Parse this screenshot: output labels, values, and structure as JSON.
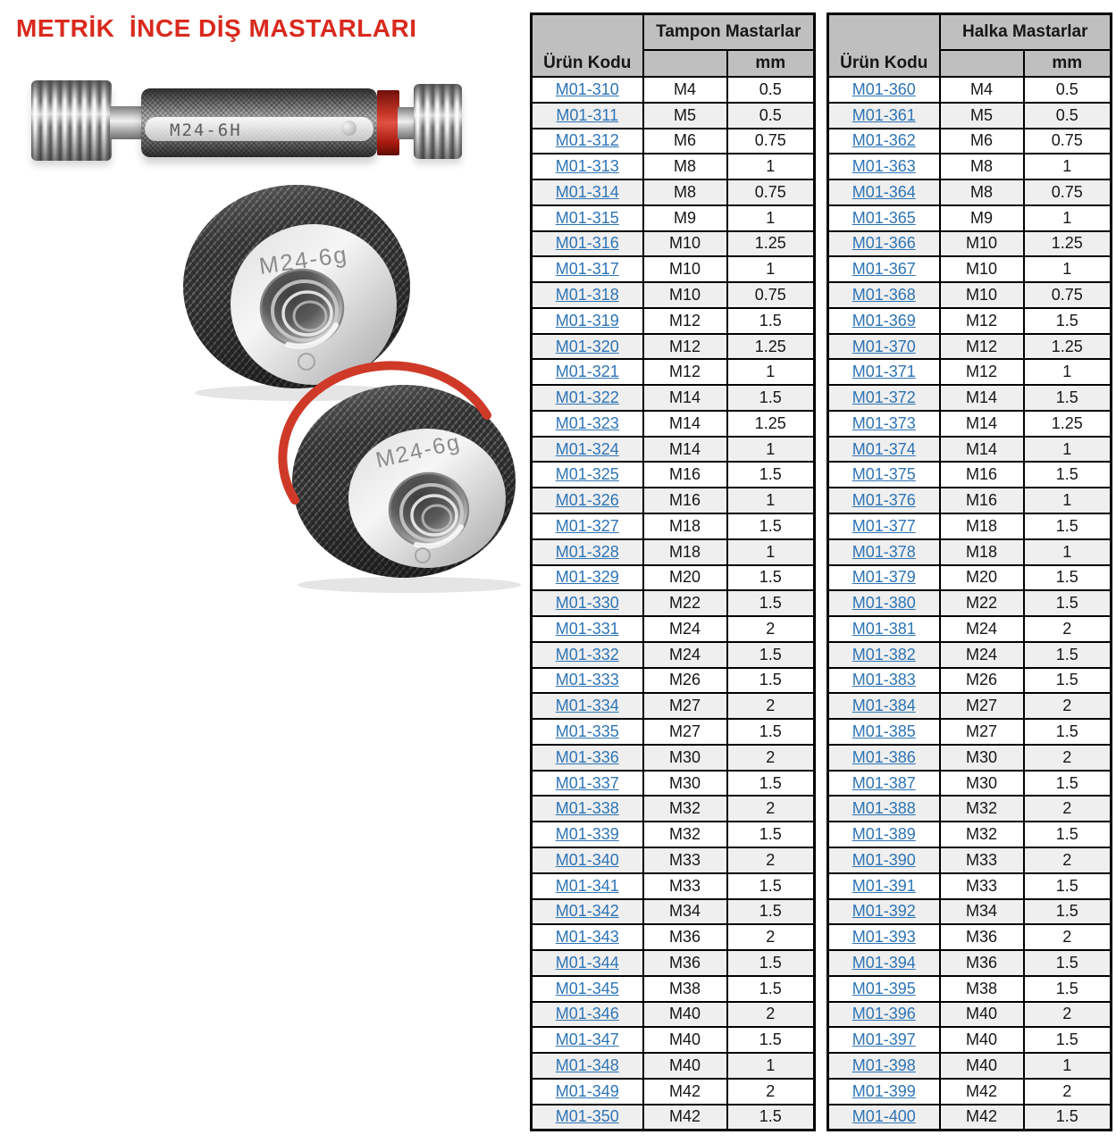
{
  "page": {
    "title": "METRİK  İNCE DİŞ MASTARLARI"
  },
  "product_images": {
    "plug_gauge_label": "M24-6H",
    "go_ring_gauge_label": "M24-6g",
    "nogo_ring_gauge_label": "M24-6g"
  },
  "colors": {
    "title_red": "#D9291D",
    "link_blue": "#2E74B5",
    "header_gray": "#BFBFBF",
    "row_alt_gray": "#EFEFEF",
    "table_border": "#000000",
    "gauge_red_mark": "#C43527"
  },
  "tables": [
    {
      "group_header": "Tampon Mastarlar",
      "col1_header": "Ürün Kodu",
      "unit_header": "mm",
      "rows": [
        {
          "code": "M01-310",
          "size": "M4",
          "mm": "0.5"
        },
        {
          "code": "M01-311",
          "size": "M5",
          "mm": "0.5"
        },
        {
          "code": "M01-312",
          "size": "M6",
          "mm": "0.75"
        },
        {
          "code": "M01-313",
          "size": "M8",
          "mm": "1"
        },
        {
          "code": "M01-314",
          "size": "M8",
          "mm": "0.75"
        },
        {
          "code": "M01-315",
          "size": "M9",
          "mm": "1"
        },
        {
          "code": "M01-316",
          "size": "M10",
          "mm": "1.25"
        },
        {
          "code": "M01-317",
          "size": "M10",
          "mm": "1"
        },
        {
          "code": "M01-318",
          "size": "M10",
          "mm": "0.75"
        },
        {
          "code": "M01-319",
          "size": "M12",
          "mm": "1.5"
        },
        {
          "code": "M01-320",
          "size": "M12",
          "mm": "1.25"
        },
        {
          "code": "M01-321",
          "size": "M12",
          "mm": "1"
        },
        {
          "code": "M01-322",
          "size": "M14",
          "mm": "1.5"
        },
        {
          "code": "M01-323",
          "size": "M14",
          "mm": "1.25"
        },
        {
          "code": "M01-324",
          "size": "M14",
          "mm": "1"
        },
        {
          "code": "M01-325",
          "size": "M16",
          "mm": "1.5"
        },
        {
          "code": "M01-326",
          "size": "M16",
          "mm": "1"
        },
        {
          "code": "M01-327",
          "size": "M18",
          "mm": "1.5"
        },
        {
          "code": "M01-328",
          "size": "M18",
          "mm": "1"
        },
        {
          "code": "M01-329",
          "size": "M20",
          "mm": "1.5"
        },
        {
          "code": "M01-330",
          "size": "M22",
          "mm": "1.5"
        },
        {
          "code": "M01-331",
          "size": "M24",
          "mm": "2"
        },
        {
          "code": "M01-332",
          "size": "M24",
          "mm": "1.5"
        },
        {
          "code": "M01-333",
          "size": "M26",
          "mm": "1.5"
        },
        {
          "code": "M01-334",
          "size": "M27",
          "mm": "2"
        },
        {
          "code": "M01-335",
          "size": "M27",
          "mm": "1.5"
        },
        {
          "code": "M01-336",
          "size": "M30",
          "mm": "2"
        },
        {
          "code": "M01-337",
          "size": "M30",
          "mm": "1.5"
        },
        {
          "code": "M01-338",
          "size": "M32",
          "mm": "2"
        },
        {
          "code": "M01-339",
          "size": "M32",
          "mm": "1.5"
        },
        {
          "code": "M01-340",
          "size": "M33",
          "mm": "2"
        },
        {
          "code": "M01-341",
          "size": "M33",
          "mm": "1.5"
        },
        {
          "code": "M01-342",
          "size": "M34",
          "mm": "1.5"
        },
        {
          "code": "M01-343",
          "size": "M36",
          "mm": "2"
        },
        {
          "code": "M01-344",
          "size": "M36",
          "mm": "1.5"
        },
        {
          "code": "M01-345",
          "size": "M38",
          "mm": "1.5"
        },
        {
          "code": "M01-346",
          "size": "M40",
          "mm": "2"
        },
        {
          "code": "M01-347",
          "size": "M40",
          "mm": "1.5"
        },
        {
          "code": "M01-348",
          "size": "M40",
          "mm": "1"
        },
        {
          "code": "M01-349",
          "size": "M42",
          "mm": "2"
        },
        {
          "code": "M01-350",
          "size": "M42",
          "mm": "1.5"
        }
      ]
    },
    {
      "group_header": "Halka Mastarlar",
      "col1_header": "Ürün Kodu",
      "unit_header": "mm",
      "rows": [
        {
          "code": "M01-360",
          "size": "M4",
          "mm": "0.5"
        },
        {
          "code": "M01-361",
          "size": "M5",
          "mm": "0.5"
        },
        {
          "code": "M01-362",
          "size": "M6",
          "mm": "0.75"
        },
        {
          "code": "M01-363",
          "size": "M8",
          "mm": "1"
        },
        {
          "code": "M01-364",
          "size": "M8",
          "mm": "0.75"
        },
        {
          "code": "M01-365",
          "size": "M9",
          "mm": "1"
        },
        {
          "code": "M01-366",
          "size": "M10",
          "mm": "1.25"
        },
        {
          "code": "M01-367",
          "size": "M10",
          "mm": "1"
        },
        {
          "code": "M01-368",
          "size": "M10",
          "mm": "0.75"
        },
        {
          "code": "M01-369",
          "size": "M12",
          "mm": "1.5"
        },
        {
          "code": "M01-370",
          "size": "M12",
          "mm": "1.25"
        },
        {
          "code": "M01-371",
          "size": "M12",
          "mm": "1"
        },
        {
          "code": "M01-372",
          "size": "M14",
          "mm": "1.5"
        },
        {
          "code": "M01-373",
          "size": "M14",
          "mm": "1.25"
        },
        {
          "code": "M01-374",
          "size": "M14",
          "mm": "1"
        },
        {
          "code": "M01-375",
          "size": "M16",
          "mm": "1.5"
        },
        {
          "code": "M01-376",
          "size": "M16",
          "mm": "1"
        },
        {
          "code": "M01-377",
          "size": "M18",
          "mm": "1.5"
        },
        {
          "code": "M01-378",
          "size": "M18",
          "mm": "1"
        },
        {
          "code": "M01-379",
          "size": "M20",
          "mm": "1.5"
        },
        {
          "code": "M01-380",
          "size": "M22",
          "mm": "1.5"
        },
        {
          "code": "M01-381",
          "size": "M24",
          "mm": "2"
        },
        {
          "code": "M01-382",
          "size": "M24",
          "mm": "1.5"
        },
        {
          "code": "M01-383",
          "size": "M26",
          "mm": "1.5"
        },
        {
          "code": "M01-384",
          "size": "M27",
          "mm": "2"
        },
        {
          "code": "M01-385",
          "size": "M27",
          "mm": "1.5"
        },
        {
          "code": "M01-386",
          "size": "M30",
          "mm": "2"
        },
        {
          "code": "M01-387",
          "size": "M30",
          "mm": "1.5"
        },
        {
          "code": "M01-388",
          "size": "M32",
          "mm": "2"
        },
        {
          "code": "M01-389",
          "size": "M32",
          "mm": "1.5"
        },
        {
          "code": "M01-390",
          "size": "M33",
          "mm": "2"
        },
        {
          "code": "M01-391",
          "size": "M33",
          "mm": "1.5"
        },
        {
          "code": "M01-392",
          "size": "M34",
          "mm": "1.5"
        },
        {
          "code": "M01-393",
          "size": "M36",
          "mm": "2"
        },
        {
          "code": "M01-394",
          "size": "M36",
          "mm": "1.5"
        },
        {
          "code": "M01-395",
          "size": "M38",
          "mm": "1.5"
        },
        {
          "code": "M01-396",
          "size": "M40",
          "mm": "2"
        },
        {
          "code": "M01-397",
          "size": "M40",
          "mm": "1.5"
        },
        {
          "code": "M01-398",
          "size": "M40",
          "mm": "1"
        },
        {
          "code": "M01-399",
          "size": "M42",
          "mm": "2"
        },
        {
          "code": "M01-400",
          "size": "M42",
          "mm": "1.5"
        }
      ]
    }
  ]
}
